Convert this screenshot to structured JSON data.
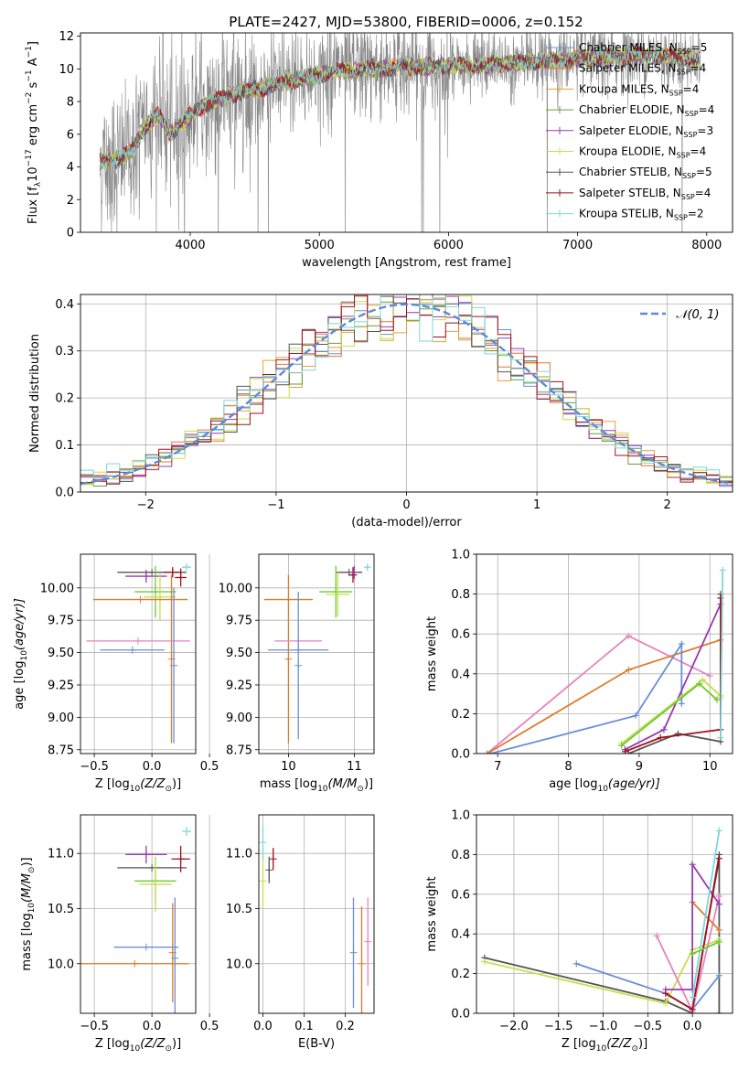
{
  "figure": {
    "title": "PLATE=2427, MJD=53800, FIBERID=0006, z=0.152"
  },
  "colors": {
    "chabrier_miles": "#6a8fd6",
    "salpeter_miles": "#e8752e",
    "kroupa_miles": "#e8a13a",
    "chabrier_elodie": "#6e9a3a",
    "salpeter_elodie": "#9a3ab0",
    "kroupa_elodie": "#c8df4a",
    "chabrier_stelib": "#555555",
    "salpeter_stelib": "#a0121c",
    "kroupa_stelib": "#7fd6dc",
    "pink": "#e882c0",
    "orange": "#e07b2a",
    "green": "#6acb30",
    "gauss": "#5b8bd6",
    "data": "#888888"
  },
  "chart_data": [
    {
      "id": "spectrum",
      "type": "line",
      "xlabel": "wavelength [Angstrom, rest frame]",
      "ylabel": "Flux [f",
      "ylabel_parts": [
        "Flux [f",
        "λ",
        "10",
        "−17",
        " erg cm",
        "−2",
        " s",
        "−1",
        " A",
        "−1",
        "]"
      ],
      "xlim": [
        3150,
        8200
      ],
      "ylim": [
        0,
        12.2
      ],
      "xticks": [
        "4000",
        "5000",
        "6000",
        "7000",
        "8000"
      ],
      "yticks": [
        "0",
        "2",
        "4",
        "6",
        "8",
        "10",
        "12"
      ],
      "data_range": [
        3300,
        7950
      ],
      "data_color_key": "data",
      "series": [
        {
          "name": "Chabrier MILES, N",
          "suffix": "=5",
          "color_key": "chabrier_miles"
        },
        {
          "name": "Salpeter MILES, N",
          "suffix": "=4",
          "color_key": "salpeter_miles"
        },
        {
          "name": "Kroupa MILES, N",
          "suffix": "=4",
          "color_key": "kroupa_miles"
        },
        {
          "name": "Chabrier ELODIE, N",
          "suffix": "=4",
          "color_key": "chabrier_elodie"
        },
        {
          "name": "Salpeter ELODIE, N",
          "suffix": "=3",
          "color_key": "salpeter_elodie"
        },
        {
          "name": "Kroupa ELODIE, N",
          "suffix": "=4",
          "color_key": "kroupa_elodie"
        },
        {
          "name": "Chabrier STELIB, N",
          "suffix": "=5",
          "color_key": "chabrier_stelib"
        },
        {
          "name": "Salpeter STELIB, N",
          "suffix": "=4",
          "color_key": "salpeter_stelib"
        },
        {
          "name": "Kroupa STELIB, N",
          "suffix": "=2",
          "color_key": "kroupa_stelib"
        }
      ],
      "legend_sub": "SSP",
      "continuum": {
        "x": [
          3300,
          3450,
          3550,
          3650,
          3750,
          3850,
          3950,
          4050,
          4200,
          4400,
          4600,
          4800,
          5000,
          5200,
          5400,
          5600,
          5800,
          6000,
          6200,
          6400,
          6600,
          6800,
          7000,
          7200,
          7400,
          7600,
          7800,
          7950
        ],
        "y": [
          4.3,
          4.5,
          5.0,
          6.5,
          7.2,
          6.0,
          6.8,
          7.5,
          8.1,
          8.6,
          8.9,
          9.3,
          9.6,
          9.9,
          10.0,
          10.1,
          10.1,
          10.2,
          10.2,
          10.3,
          10.4,
          10.5,
          10.6,
          10.7,
          10.8,
          10.8,
          10.7,
          10.5
        ]
      },
      "legend_position": "upper-right",
      "grid": false
    },
    {
      "id": "residuals",
      "type": "line",
      "xlabel": "(data-model)/error",
      "ylabel": "Normed distribution",
      "xlim": [
        -2.5,
        2.5
      ],
      "ylim": [
        0,
        0.42
      ],
      "xticks": [
        "−2",
        "−1",
        "0",
        "1",
        "2"
      ],
      "yticks": [
        "0.0",
        "0.1",
        "0.2",
        "0.3",
        "0.4"
      ],
      "gauss_label": "𝒩(0, 1)",
      "gauss_color_key": "gauss",
      "bin_width": 0.1,
      "grid": true,
      "legend_position": "upper-right"
    },
    {
      "id": "age_vs_z",
      "type": "scatter",
      "xlabel": "Z [log",
      "xlabel_parts": [
        "Z [log",
        "10",
        "(Z/Z",
        "⊙",
        ")]"
      ],
      "ylabel_parts": [
        "age  [log",
        "10",
        "(age/yr)]"
      ],
      "xlim": [
        -0.62,
        0.38
      ],
      "ylim": [
        8.72,
        10.26
      ],
      "xticks": [
        "−0.5",
        "0.0",
        "0.5"
      ],
      "yticks": [
        "8.75",
        "9.00",
        "9.25",
        "9.50",
        "9.75",
        "10.00"
      ],
      "points": [
        {
          "x": 0.0,
          "y": 10.12,
          "xerr": 0.3,
          "yerr": 0.0,
          "color_key": "chabrier_stelib"
        },
        {
          "x": -0.05,
          "y": 10.09,
          "xerr": 0.18,
          "yerr": 0.05,
          "color_key": "salpeter_elodie"
        },
        {
          "x": 0.18,
          "y": 10.12,
          "xerr": 0.08,
          "yerr": 0.04,
          "color_key": "salpeter_stelib"
        },
        {
          "x": 0.25,
          "y": 10.08,
          "xerr": 0.05,
          "yerr": 0.07,
          "color_key": "salpeter_stelib"
        },
        {
          "x": 0.03,
          "y": 9.97,
          "xerr": 0.18,
          "yerr": 0.2,
          "color_key": "green"
        },
        {
          "x": 0.07,
          "y": 9.93,
          "xerr": 0.14,
          "yerr": 0.18,
          "color_key": "kroupa_elodie"
        },
        {
          "x": -0.1,
          "y": 9.91,
          "xerr": 0.41,
          "yerr": 0.0,
          "color_key": "orange"
        },
        {
          "x": 0.17,
          "y": 9.45,
          "xerr": 0.0,
          "yerr": 0.65,
          "color_key": "orange"
        },
        {
          "x": -0.12,
          "y": 9.59,
          "xerr": 0.45,
          "yerr": 0.0,
          "color_key": "pink"
        },
        {
          "x": -0.17,
          "y": 9.52,
          "xerr": 0.28,
          "yerr": 0.0,
          "color_key": "chabrier_miles"
        },
        {
          "x": 0.19,
          "y": 9.4,
          "xerr": 0.0,
          "yerr": 0.6,
          "color_key": "chabrier_miles"
        },
        {
          "x": 0.3,
          "y": 10.16,
          "xerr": 0.04,
          "yerr": 0.02,
          "color_key": "kroupa_stelib"
        }
      ],
      "grid": true
    },
    {
      "id": "age_vs_mass",
      "type": "scatter",
      "xlabel_parts": [
        "mass [log",
        "10",
        "(M/M",
        "⊙",
        ")]"
      ],
      "xlim": [
        9.55,
        11.3
      ],
      "ylim": [
        8.72,
        10.26
      ],
      "xticks": [
        "10",
        "11"
      ],
      "yticks": [
        "8.75",
        "9.00",
        "9.25",
        "9.50",
        "9.75",
        "10.00"
      ],
      "points": [
        {
          "x": 10.92,
          "y": 10.12,
          "xerr": 0.2,
          "yerr": 0.0,
          "color_key": "chabrier_stelib"
        },
        {
          "x": 10.98,
          "y": 10.1,
          "xerr": 0.06,
          "yerr": 0.06,
          "color_key": "salpeter_stelib"
        },
        {
          "x": 11.0,
          "y": 10.12,
          "xerr": 0.04,
          "yerr": 0.05,
          "color_key": "salpeter_elodie"
        },
        {
          "x": 10.72,
          "y": 9.97,
          "xerr": 0.25,
          "yerr": 0.2,
          "color_key": "green"
        },
        {
          "x": 10.75,
          "y": 9.95,
          "xerr": 0.18,
          "yerr": 0.17,
          "color_key": "kroupa_elodie"
        },
        {
          "x": 10.0,
          "y": 9.91,
          "xerr": 0.37,
          "yerr": 0.0,
          "color_key": "orange"
        },
        {
          "x": 10.0,
          "y": 9.45,
          "xerr": 0.0,
          "yerr": 0.65,
          "color_key": "orange"
        },
        {
          "x": 10.15,
          "y": 9.59,
          "xerr": 0.36,
          "yerr": 0.0,
          "color_key": "pink"
        },
        {
          "x": 10.15,
          "y": 9.52,
          "xerr": 0.46,
          "yerr": 0.0,
          "color_key": "chabrier_miles"
        },
        {
          "x": 10.15,
          "y": 9.4,
          "xerr": 0.0,
          "yerr": 0.57,
          "color_key": "chabrier_miles"
        },
        {
          "x": 11.2,
          "y": 10.16,
          "xerr": 0.04,
          "yerr": 0.02,
          "color_key": "kroupa_stelib"
        }
      ],
      "grid": true
    },
    {
      "id": "weight_vs_age",
      "type": "line",
      "xlabel_parts": [
        "age  [log",
        "10",
        "(age/yr)]"
      ],
      "ylabel": "mass weight",
      "xlim": [
        6.7,
        10.32
      ],
      "ylim": [
        0,
        1.0
      ],
      "xticks": [
        "7",
        "8",
        "9",
        "10"
      ],
      "yticks": [
        "0.0",
        "0.2",
        "0.4",
        "0.6",
        "0.8",
        "1.0"
      ],
      "series": [
        {
          "color_key": "pink",
          "x": [
            6.85,
            8.85,
            10.0
          ],
          "y": [
            0.0,
            0.59,
            0.39
          ]
        },
        {
          "color_key": "orange",
          "x": [
            6.85,
            8.85,
            10.15
          ],
          "y": [
            0.0,
            0.42,
            0.57
          ]
        },
        {
          "color_key": "chabrier_miles",
          "x": [
            6.9,
            8.95,
            9.6,
            9.6
          ],
          "y": [
            0.0,
            0.19,
            0.55,
            0.25
          ]
        },
        {
          "color_key": "salpeter_elodie",
          "x": [
            8.8,
            9.35,
            10.15
          ],
          "y": [
            0.02,
            0.12,
            0.75
          ]
        },
        {
          "color_key": "kroupa_elodie",
          "x": [
            8.75,
            9.9,
            10.15,
            10.15
          ],
          "y": [
            0.05,
            0.37,
            0.29,
            0.28
          ]
        },
        {
          "color_key": "green",
          "x": [
            8.75,
            9.85,
            10.1
          ],
          "y": [
            0.04,
            0.35,
            0.27
          ]
        },
        {
          "color_key": "chabrier_stelib",
          "x": [
            8.85,
            9.55,
            10.15,
            10.15
          ],
          "y": [
            0.0,
            0.1,
            0.06,
            0.8
          ]
        },
        {
          "color_key": "salpeter_stelib",
          "x": [
            8.8,
            9.3,
            10.15,
            10.15
          ],
          "y": [
            0.01,
            0.08,
            0.12,
            0.78
          ]
        },
        {
          "color_key": "kroupa_stelib",
          "x": [
            10.15,
            10.18
          ],
          "y": [
            0.08,
            0.92
          ]
        }
      ],
      "grid": true
    },
    {
      "id": "mass_vs_z",
      "type": "scatter",
      "xlabel_parts": [
        "Z [log",
        "10",
        "(Z/Z",
        "⊙",
        ")]"
      ],
      "ylabel_parts": [
        "mass [log",
        "10",
        "(M/M",
        "⊙",
        ")]"
      ],
      "xlim": [
        -0.62,
        0.38
      ],
      "ylim": [
        9.55,
        11.35
      ],
      "xticks": [
        "−0.5",
        "0.0",
        "0.5"
      ],
      "yticks": [
        "10.0",
        "10.5",
        "11.0"
      ],
      "points": [
        {
          "x": 0.0,
          "y": 10.87,
          "xerr": 0.3,
          "yerr": 0.0,
          "color_key": "chabrier_stelib"
        },
        {
          "x": -0.05,
          "y": 10.99,
          "xerr": 0.18,
          "yerr": 0.08,
          "color_key": "salpeter_elodie"
        },
        {
          "x": 0.25,
          "y": 10.95,
          "xerr": 0.08,
          "yerr": 0.12,
          "color_key": "salpeter_stelib"
        },
        {
          "x": 0.03,
          "y": 10.75,
          "xerr": 0.18,
          "yerr": 0.22,
          "color_key": "green"
        },
        {
          "x": 0.03,
          "y": 10.72,
          "xerr": 0.14,
          "yerr": 0.25,
          "color_key": "kroupa_elodie"
        },
        {
          "x": -0.15,
          "y": 10.0,
          "xerr": 0.47,
          "yerr": 0.0,
          "color_key": "orange"
        },
        {
          "x": 0.18,
          "y": 10.1,
          "xerr": 0.0,
          "yerr": 0.45,
          "color_key": "orange"
        },
        {
          "x": -0.05,
          "y": 10.15,
          "xerr": 0.28,
          "yerr": 0.0,
          "color_key": "chabrier_miles"
        },
        {
          "x": 0.2,
          "y": 10.05,
          "xerr": 0.0,
          "yerr": 0.55,
          "color_key": "chabrier_miles"
        },
        {
          "x": 0.3,
          "y": 11.2,
          "xerr": 0.04,
          "yerr": 0.04,
          "color_key": "kroupa_stelib"
        }
      ],
      "grid": true
    },
    {
      "id": "mass_vs_ebv",
      "type": "scatter",
      "xlabel": "E(B-V)",
      "xlim": [
        -0.01,
        0.27
      ],
      "ylim": [
        9.55,
        11.35
      ],
      "xticks": [
        "0.0",
        "0.1",
        "0.2"
      ],
      "yticks": [
        "10.0",
        "10.5",
        "11.0"
      ],
      "points": [
        {
          "x": 0.0,
          "y": 10.75,
          "xerr": 0.0,
          "yerr": 0.25,
          "color_key": "kroupa_elodie"
        },
        {
          "x": 0.0,
          "y": 11.1,
          "xerr": 0.0,
          "yerr": 0.15,
          "color_key": "kroupa_stelib"
        },
        {
          "x": 0.015,
          "y": 10.85,
          "xerr": 0.0,
          "yerr": 0.12,
          "color_key": "chabrier_stelib"
        },
        {
          "x": 0.025,
          "y": 10.95,
          "xerr": 0.0,
          "yerr": 0.1,
          "color_key": "salpeter_stelib"
        },
        {
          "x": 0.22,
          "y": 10.1,
          "xerr": 0.0,
          "yerr": 0.5,
          "color_key": "chabrier_miles"
        },
        {
          "x": 0.24,
          "y": 10.0,
          "xerr": 0.0,
          "yerr": 0.52,
          "color_key": "orange"
        },
        {
          "x": 0.255,
          "y": 10.2,
          "xerr": 0.0,
          "yerr": 0.4,
          "color_key": "pink"
        }
      ],
      "grid": true
    },
    {
      "id": "weight_vs_z",
      "type": "line",
      "xlabel_parts": [
        "Z [log",
        "10",
        "(Z/Z",
        "⊙",
        ")]"
      ],
      "ylabel": "mass weight",
      "xlim": [
        -2.42,
        0.45
      ],
      "ylim": [
        0,
        1.0
      ],
      "xticks": [
        "−2.0",
        "−1.5",
        "−1.0",
        "−0.5",
        "0.0"
      ],
      "yticks": [
        "0.0",
        "0.2",
        "0.4",
        "0.6",
        "0.8",
        "1.0"
      ],
      "series": [
        {
          "color_key": "chabrier_stelib",
          "x": [
            -2.33,
            -0.3,
            0.0,
            0.3,
            0.3
          ],
          "y": [
            0.28,
            0.06,
            0.0,
            0.8,
            0.0
          ]
        },
        {
          "color_key": "kroupa_elodie",
          "x": [
            -2.33,
            -0.3,
            0.0,
            0.3
          ],
          "y": [
            0.26,
            0.05,
            0.32,
            0.37
          ]
        },
        {
          "color_key": "chabrier_miles",
          "x": [
            -1.3,
            -0.3,
            0.0,
            0.3
          ],
          "y": [
            0.25,
            0.1,
            0.02,
            0.19
          ]
        },
        {
          "color_key": "pink",
          "x": [
            -0.4,
            0.0,
            0.3
          ],
          "y": [
            0.39,
            0.01,
            0.59
          ]
        },
        {
          "color_key": "orange",
          "x": [
            0.0,
            0.3
          ],
          "y": [
            0.56,
            0.42
          ]
        },
        {
          "color_key": "salpeter_elodie",
          "x": [
            -0.3,
            0.0,
            0.0,
            0.3
          ],
          "y": [
            0.12,
            0.12,
            0.75,
            0.55
          ]
        },
        {
          "color_key": "salpeter_stelib",
          "x": [
            -0.3,
            0.0,
            0.3
          ],
          "y": [
            0.1,
            0.02,
            0.78
          ]
        },
        {
          "color_key": "kroupa_stelib",
          "x": [
            0.0,
            0.3
          ],
          "y": [
            0.08,
            0.92
          ]
        },
        {
          "color_key": "green",
          "x": [
            0.0,
            0.3
          ],
          "y": [
            0.3,
            0.36
          ]
        }
      ],
      "grid": true
    }
  ]
}
